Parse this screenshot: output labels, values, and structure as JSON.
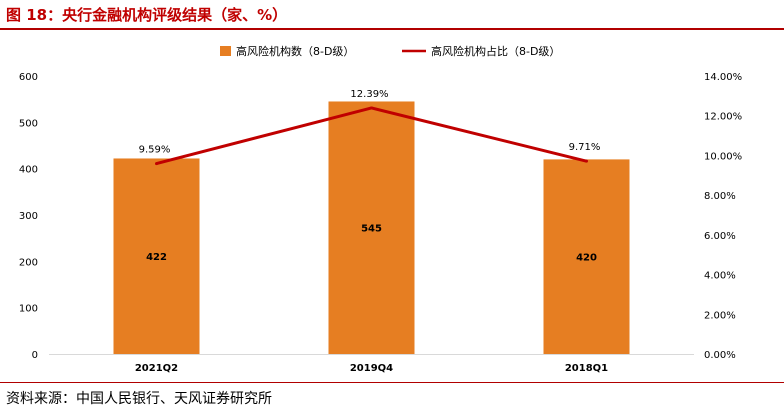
{
  "figure": {
    "title": "图 18：央行金融机构评级结果（家、%）",
    "source": "资料来源：中国人民银行、天风证券研究所"
  },
  "colors": {
    "bar": "#e67e22",
    "line": "#c00000",
    "axis_text": "#000000",
    "axis_line": "#d9d9d9"
  },
  "chart_data": {
    "type": "bar",
    "categories": [
      "2021Q2",
      "2019Q4",
      "2018Q1"
    ],
    "series": [
      {
        "name": "高风险机构数（8-D级）",
        "type": "bar",
        "axis": "left",
        "values": [
          422,
          545,
          420
        ],
        "labels": [
          "422",
          "545",
          "420"
        ]
      },
      {
        "name": "高风险机构占比（8-D级）",
        "type": "line",
        "axis": "right",
        "values": [
          9.59,
          12.39,
          9.71
        ],
        "labels": [
          "9.59%",
          "12.39%",
          "9.71%"
        ]
      }
    ],
    "y_left": {
      "ylim": [
        0,
        600
      ],
      "ticks": [
        "0",
        "100",
        "200",
        "300",
        "400",
        "500",
        "600"
      ]
    },
    "y_right": {
      "ylim": [
        0,
        14
      ],
      "ticks": [
        "0.00%",
        "2.00%",
        "4.00%",
        "6.00%",
        "8.00%",
        "10.00%",
        "12.00%",
        "14.00%"
      ]
    },
    "legend_position": "top-center",
    "grid": false
  }
}
